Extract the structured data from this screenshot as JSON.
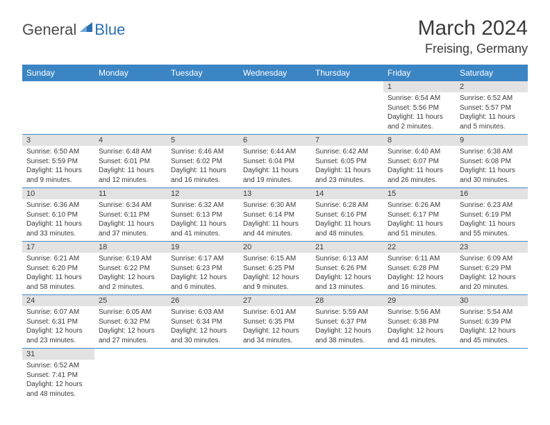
{
  "logo": {
    "text1": "General",
    "text2": "Blue",
    "color1": "#4a4a4a",
    "color2": "#2b6fb0",
    "icon_color": "#2b6fb0"
  },
  "title": "March 2024",
  "location": "Freising, Germany",
  "colors": {
    "header_bg": "#3b85c4",
    "header_fg": "#ffffff",
    "daynum_bg": "#e2e2e2",
    "border": "#3b85c4",
    "text": "#3a3a3a"
  },
  "weekdays": [
    "Sunday",
    "Monday",
    "Tuesday",
    "Wednesday",
    "Thursday",
    "Friday",
    "Saturday"
  ],
  "weeks": [
    [
      null,
      null,
      null,
      null,
      null,
      {
        "d": "1",
        "sr": "Sunrise: 6:54 AM",
        "ss": "Sunset: 5:56 PM",
        "dl1": "Daylight: 11 hours",
        "dl2": "and 2 minutes."
      },
      {
        "d": "2",
        "sr": "Sunrise: 6:52 AM",
        "ss": "Sunset: 5:57 PM",
        "dl1": "Daylight: 11 hours",
        "dl2": "and 5 minutes."
      }
    ],
    [
      {
        "d": "3",
        "sr": "Sunrise: 6:50 AM",
        "ss": "Sunset: 5:59 PM",
        "dl1": "Daylight: 11 hours",
        "dl2": "and 9 minutes."
      },
      {
        "d": "4",
        "sr": "Sunrise: 6:48 AM",
        "ss": "Sunset: 6:01 PM",
        "dl1": "Daylight: 11 hours",
        "dl2": "and 12 minutes."
      },
      {
        "d": "5",
        "sr": "Sunrise: 6:46 AM",
        "ss": "Sunset: 6:02 PM",
        "dl1": "Daylight: 11 hours",
        "dl2": "and 16 minutes."
      },
      {
        "d": "6",
        "sr": "Sunrise: 6:44 AM",
        "ss": "Sunset: 6:04 PM",
        "dl1": "Daylight: 11 hours",
        "dl2": "and 19 minutes."
      },
      {
        "d": "7",
        "sr": "Sunrise: 6:42 AM",
        "ss": "Sunset: 6:05 PM",
        "dl1": "Daylight: 11 hours",
        "dl2": "and 23 minutes."
      },
      {
        "d": "8",
        "sr": "Sunrise: 6:40 AM",
        "ss": "Sunset: 6:07 PM",
        "dl1": "Daylight: 11 hours",
        "dl2": "and 26 minutes."
      },
      {
        "d": "9",
        "sr": "Sunrise: 6:38 AM",
        "ss": "Sunset: 6:08 PM",
        "dl1": "Daylight: 11 hours",
        "dl2": "and 30 minutes."
      }
    ],
    [
      {
        "d": "10",
        "sr": "Sunrise: 6:36 AM",
        "ss": "Sunset: 6:10 PM",
        "dl1": "Daylight: 11 hours",
        "dl2": "and 33 minutes."
      },
      {
        "d": "11",
        "sr": "Sunrise: 6:34 AM",
        "ss": "Sunset: 6:11 PM",
        "dl1": "Daylight: 11 hours",
        "dl2": "and 37 minutes."
      },
      {
        "d": "12",
        "sr": "Sunrise: 6:32 AM",
        "ss": "Sunset: 6:13 PM",
        "dl1": "Daylight: 11 hours",
        "dl2": "and 41 minutes."
      },
      {
        "d": "13",
        "sr": "Sunrise: 6:30 AM",
        "ss": "Sunset: 6:14 PM",
        "dl1": "Daylight: 11 hours",
        "dl2": "and 44 minutes."
      },
      {
        "d": "14",
        "sr": "Sunrise: 6:28 AM",
        "ss": "Sunset: 6:16 PM",
        "dl1": "Daylight: 11 hours",
        "dl2": "and 48 minutes."
      },
      {
        "d": "15",
        "sr": "Sunrise: 6:26 AM",
        "ss": "Sunset: 6:17 PM",
        "dl1": "Daylight: 11 hours",
        "dl2": "and 51 minutes."
      },
      {
        "d": "16",
        "sr": "Sunrise: 6:23 AM",
        "ss": "Sunset: 6:19 PM",
        "dl1": "Daylight: 11 hours",
        "dl2": "and 55 minutes."
      }
    ],
    [
      {
        "d": "17",
        "sr": "Sunrise: 6:21 AM",
        "ss": "Sunset: 6:20 PM",
        "dl1": "Daylight: 11 hours",
        "dl2": "and 58 minutes."
      },
      {
        "d": "18",
        "sr": "Sunrise: 6:19 AM",
        "ss": "Sunset: 6:22 PM",
        "dl1": "Daylight: 12 hours",
        "dl2": "and 2 minutes."
      },
      {
        "d": "19",
        "sr": "Sunrise: 6:17 AM",
        "ss": "Sunset: 6:23 PM",
        "dl1": "Daylight: 12 hours",
        "dl2": "and 6 minutes."
      },
      {
        "d": "20",
        "sr": "Sunrise: 6:15 AM",
        "ss": "Sunset: 6:25 PM",
        "dl1": "Daylight: 12 hours",
        "dl2": "and 9 minutes."
      },
      {
        "d": "21",
        "sr": "Sunrise: 6:13 AM",
        "ss": "Sunset: 6:26 PM",
        "dl1": "Daylight: 12 hours",
        "dl2": "and 13 minutes."
      },
      {
        "d": "22",
        "sr": "Sunrise: 6:11 AM",
        "ss": "Sunset: 6:28 PM",
        "dl1": "Daylight: 12 hours",
        "dl2": "and 16 minutes."
      },
      {
        "d": "23",
        "sr": "Sunrise: 6:09 AM",
        "ss": "Sunset: 6:29 PM",
        "dl1": "Daylight: 12 hours",
        "dl2": "and 20 minutes."
      }
    ],
    [
      {
        "d": "24",
        "sr": "Sunrise: 6:07 AM",
        "ss": "Sunset: 6:31 PM",
        "dl1": "Daylight: 12 hours",
        "dl2": "and 23 minutes."
      },
      {
        "d": "25",
        "sr": "Sunrise: 6:05 AM",
        "ss": "Sunset: 6:32 PM",
        "dl1": "Daylight: 12 hours",
        "dl2": "and 27 minutes."
      },
      {
        "d": "26",
        "sr": "Sunrise: 6:03 AM",
        "ss": "Sunset: 6:34 PM",
        "dl1": "Daylight: 12 hours",
        "dl2": "and 30 minutes."
      },
      {
        "d": "27",
        "sr": "Sunrise: 6:01 AM",
        "ss": "Sunset: 6:35 PM",
        "dl1": "Daylight: 12 hours",
        "dl2": "and 34 minutes."
      },
      {
        "d": "28",
        "sr": "Sunrise: 5:59 AM",
        "ss": "Sunset: 6:37 PM",
        "dl1": "Daylight: 12 hours",
        "dl2": "and 38 minutes."
      },
      {
        "d": "29",
        "sr": "Sunrise: 5:56 AM",
        "ss": "Sunset: 6:38 PM",
        "dl1": "Daylight: 12 hours",
        "dl2": "and 41 minutes."
      },
      {
        "d": "30",
        "sr": "Sunrise: 5:54 AM",
        "ss": "Sunset: 6:39 PM",
        "dl1": "Daylight: 12 hours",
        "dl2": "and 45 minutes."
      }
    ],
    [
      {
        "d": "31",
        "sr": "Sunrise: 6:52 AM",
        "ss": "Sunset: 7:41 PM",
        "dl1": "Daylight: 12 hours",
        "dl2": "and 48 minutes."
      },
      null,
      null,
      null,
      null,
      null,
      null
    ]
  ]
}
